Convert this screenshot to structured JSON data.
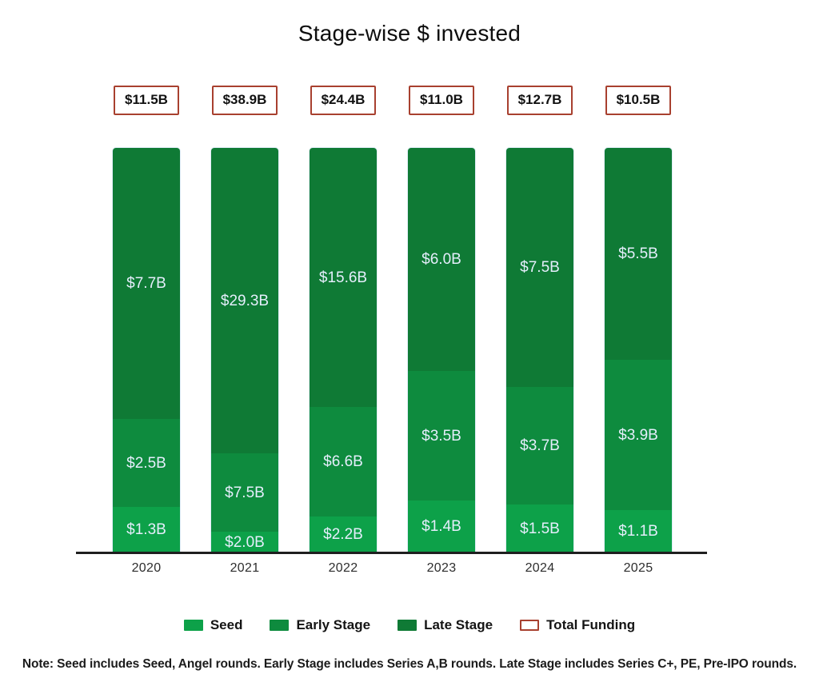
{
  "chart_data": {
    "type": "bar",
    "variant": "stacked-100-percent",
    "title": "Stage-wise $ invested",
    "unit": "USD billions",
    "categories": [
      "2020",
      "2021",
      "2022",
      "2023",
      "2024",
      "2025"
    ],
    "series": [
      {
        "name": "Seed",
        "color_key": "seed",
        "values": [
          1.3,
          2.0,
          2.2,
          1.4,
          1.5,
          1.1
        ],
        "labels": [
          "$1.3B",
          "$2.0B",
          "$2.2B",
          "$1.4B",
          "$1.5B",
          "$1.1B"
        ]
      },
      {
        "name": "Early Stage",
        "color_key": "early_stage",
        "values": [
          2.5,
          7.5,
          6.6,
          3.5,
          3.7,
          3.9
        ],
        "labels": [
          "$2.5B",
          "$7.5B",
          "$6.6B",
          "$3.5B",
          "$3.7B",
          "$3.9B"
        ]
      },
      {
        "name": "Late Stage",
        "color_key": "late_stage",
        "values": [
          7.7,
          29.3,
          15.6,
          6.0,
          7.5,
          5.5
        ],
        "labels": [
          "$7.7B",
          "$29.3B",
          "$15.6B",
          "$6.0B",
          "$7.5B",
          "$5.5B"
        ]
      }
    ],
    "totals": {
      "name": "Total Funding",
      "values": [
        11.5,
        38.9,
        24.4,
        11.0,
        12.7,
        10.5
      ],
      "labels": [
        "$11.5B",
        "$38.9B",
        "$24.4B",
        "$11.0B",
        "$12.7B",
        "$10.5B"
      ]
    },
    "legend": [
      {
        "label": "Seed",
        "swatch": "seed"
      },
      {
        "label": "Early Stage",
        "swatch": "early_stage"
      },
      {
        "label": "Late Stage",
        "swatch": "late_stage"
      },
      {
        "label": "Total Funding",
        "swatch": "total_funding"
      }
    ],
    "note": "Note: Seed includes Seed, Angel rounds. Early Stage includes Series A,B rounds. Late Stage includes Series C+, PE, Pre-IPO rounds.",
    "colors": {
      "seed": "#0da149",
      "early_stage": "#0e8b3e",
      "late_stage": "#0f7a35",
      "total_funding_border": "#a8402f",
      "bar_value_label": "#e5eefc",
      "axis_line": "#1f1f1f"
    },
    "layout_hints": {
      "stacking": "each bar normalized to equal height, segments proportional to share of total",
      "legend_position": "bottom",
      "grid": "off",
      "value_labels": "inside segments",
      "totals_position": "boxed above each bar"
    }
  }
}
